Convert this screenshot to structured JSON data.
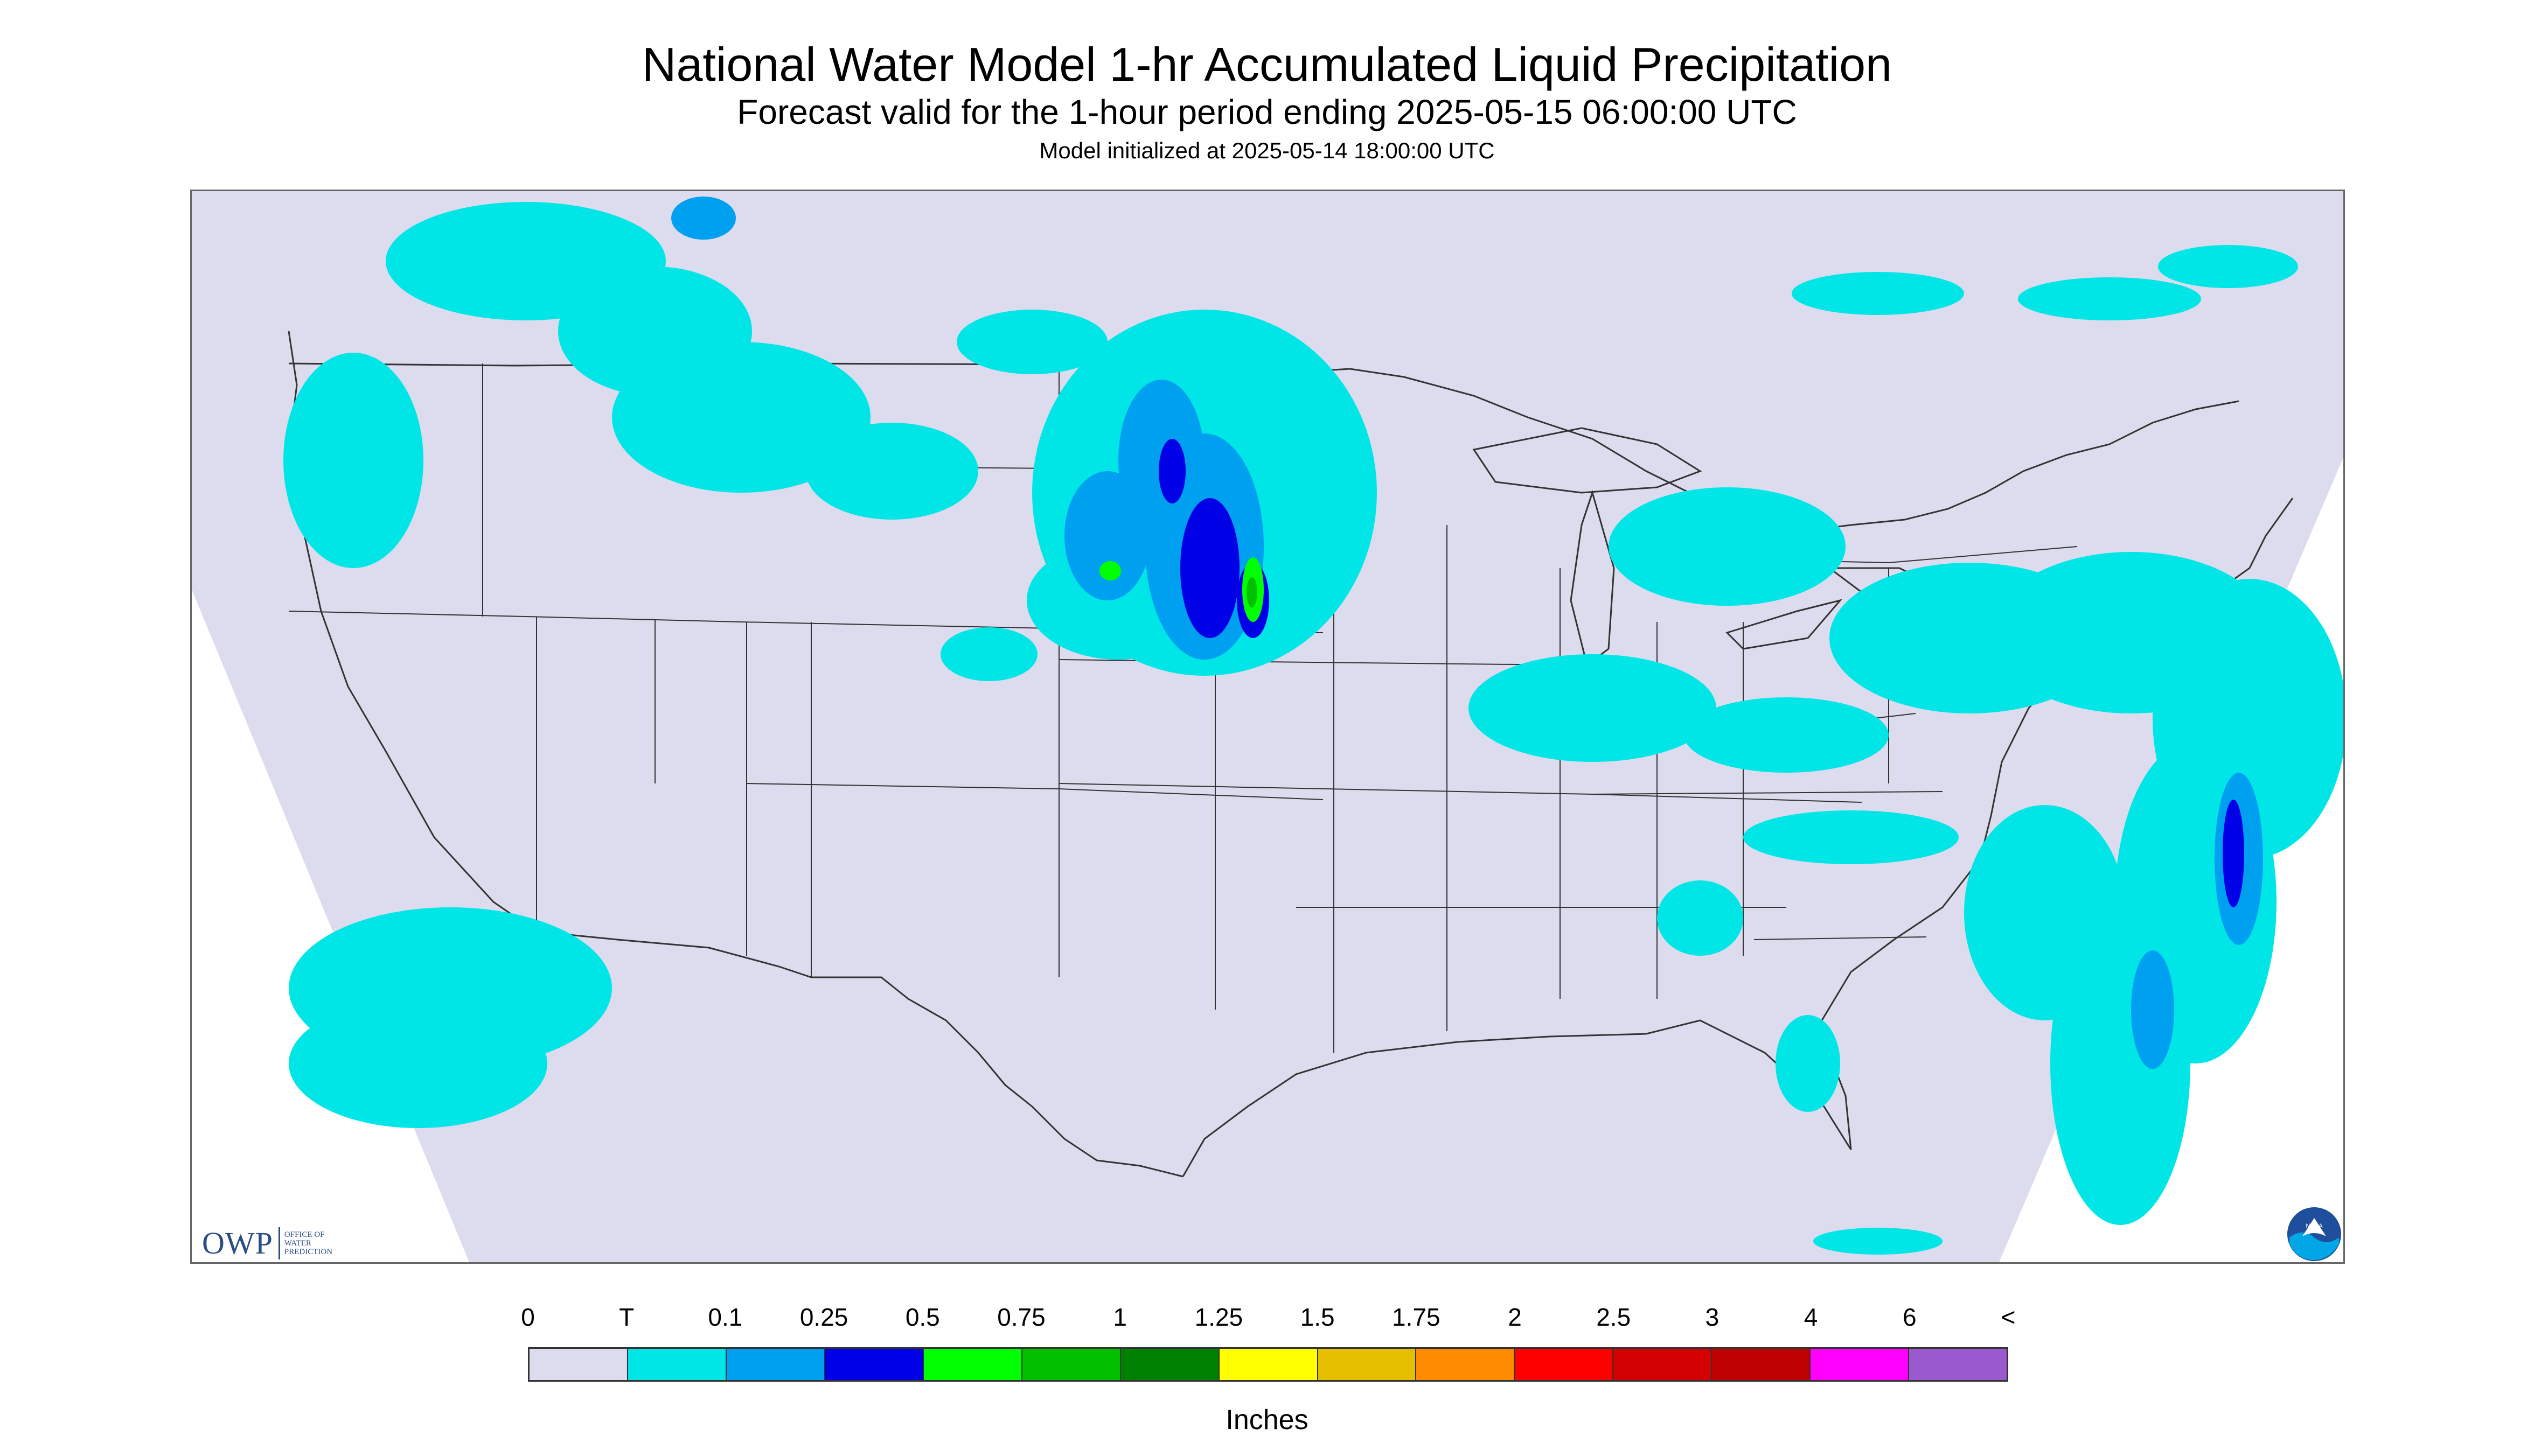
{
  "header": {
    "title": "National Water Model 1-hr Accumulated Liquid Precipitation",
    "subtitle": "Forecast valid for the 1-hour period ending 2025-05-15 06:00:00 UTC",
    "init": "Model initialized at 2025-05-14 18:00:00 UTC"
  },
  "map": {
    "background_color": "#dcdcee",
    "outside_color": "#ffffff",
    "boundary_color": "#333333",
    "precip_colors": {
      "trace": "#00e6e6",
      "light": "#00a0f0",
      "moderate": "#0000e6",
      "heavy": "#00ff00",
      "very_heavy": "#00c000"
    }
  },
  "logos": {
    "owp": {
      "letters": "OWP",
      "line1": "OFFICE OF",
      "line2": "WATER",
      "line3": "PREDICTION"
    },
    "noaa": {
      "label": "NOAA",
      "color_outer": "#1f4e9c",
      "color_inner": "#00a6e6"
    }
  },
  "legend": {
    "labels": [
      "0",
      "T",
      "0.1",
      "0.25",
      "0.5",
      "0.75",
      "1",
      "1.25",
      "1.5",
      "1.75",
      "2",
      "2.5",
      "3",
      "4",
      "6",
      "<"
    ],
    "colors": [
      "#dcdcee",
      "#00e6e6",
      "#00a0f0",
      "#0000e6",
      "#00ff00",
      "#00c000",
      "#008000",
      "#ffff00",
      "#e6be00",
      "#ff8c00",
      "#ff0000",
      "#d20000",
      "#be0000",
      "#ff00ff",
      "#9b59d0"
    ],
    "units": "Inches"
  }
}
